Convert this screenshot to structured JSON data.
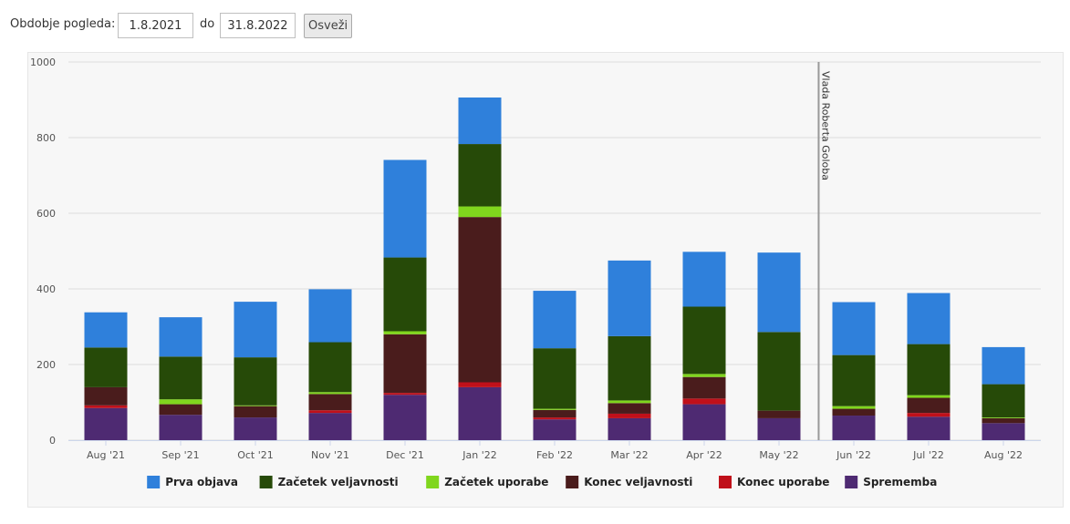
{
  "toolbar": {
    "period_label": "Obdobje pogleda:",
    "from_value": "1.8.2021",
    "to_label": "do",
    "to_value": "31.8.2022",
    "refresh_label": "Osveži"
  },
  "chart_data": {
    "type": "bar",
    "stacked": true,
    "categories": [
      "Aug '21",
      "Sep '21",
      "Oct '21",
      "Nov '21",
      "Dec '21",
      "Jan '22",
      "Feb '22",
      "Mar '22",
      "Apr '22",
      "May '22",
      "Jun '22",
      "Jul '22",
      "Aug '22"
    ],
    "series": [
      {
        "name": "Sprememba",
        "color": "#4e2a72",
        "values": [
          85,
          67,
          60,
          72,
          120,
          140,
          55,
          58,
          95,
          58,
          65,
          62,
          45
        ]
      },
      {
        "name": "Konec uporabe",
        "color": "#c0101a",
        "values": [
          7,
          0,
          0,
          7,
          5,
          13,
          5,
          12,
          15,
          0,
          0,
          10,
          0
        ]
      },
      {
        "name": "Konec veljavnosti",
        "color": "#4a1c1c",
        "values": [
          48,
          28,
          30,
          43,
          155,
          437,
          20,
          28,
          57,
          20,
          18,
          40,
          13
        ]
      },
      {
        "name": "Začetek uporabe",
        "color": "#80d61d",
        "values": [
          0,
          13,
          2,
          5,
          8,
          28,
          3,
          7,
          8,
          0,
          7,
          7,
          2
        ]
      },
      {
        "name": "Začetek veljavnosti",
        "color": "#264a08",
        "values": [
          105,
          113,
          127,
          132,
          195,
          165,
          160,
          170,
          178,
          208,
          135,
          135,
          88
        ]
      },
      {
        "name": "Prva objava",
        "color": "#2f80db",
        "values": [
          93,
          104,
          147,
          140,
          258,
          123,
          152,
          200,
          145,
          210,
          140,
          135,
          98
        ]
      }
    ],
    "legend_order": [
      "Prva objava",
      "Začetek veljavnosti",
      "Začetek uporabe",
      "Konec veljavnosti",
      "Konec uporabe",
      "Sprememba"
    ],
    "legend_position": "bottom-center",
    "ylim": [
      0,
      1000
    ],
    "yticks": [
      0,
      200,
      400,
      600,
      800,
      1000
    ],
    "grid": true,
    "annotation": {
      "text": "Vlada Roberta Goloba",
      "x_position": 10.03
    }
  }
}
